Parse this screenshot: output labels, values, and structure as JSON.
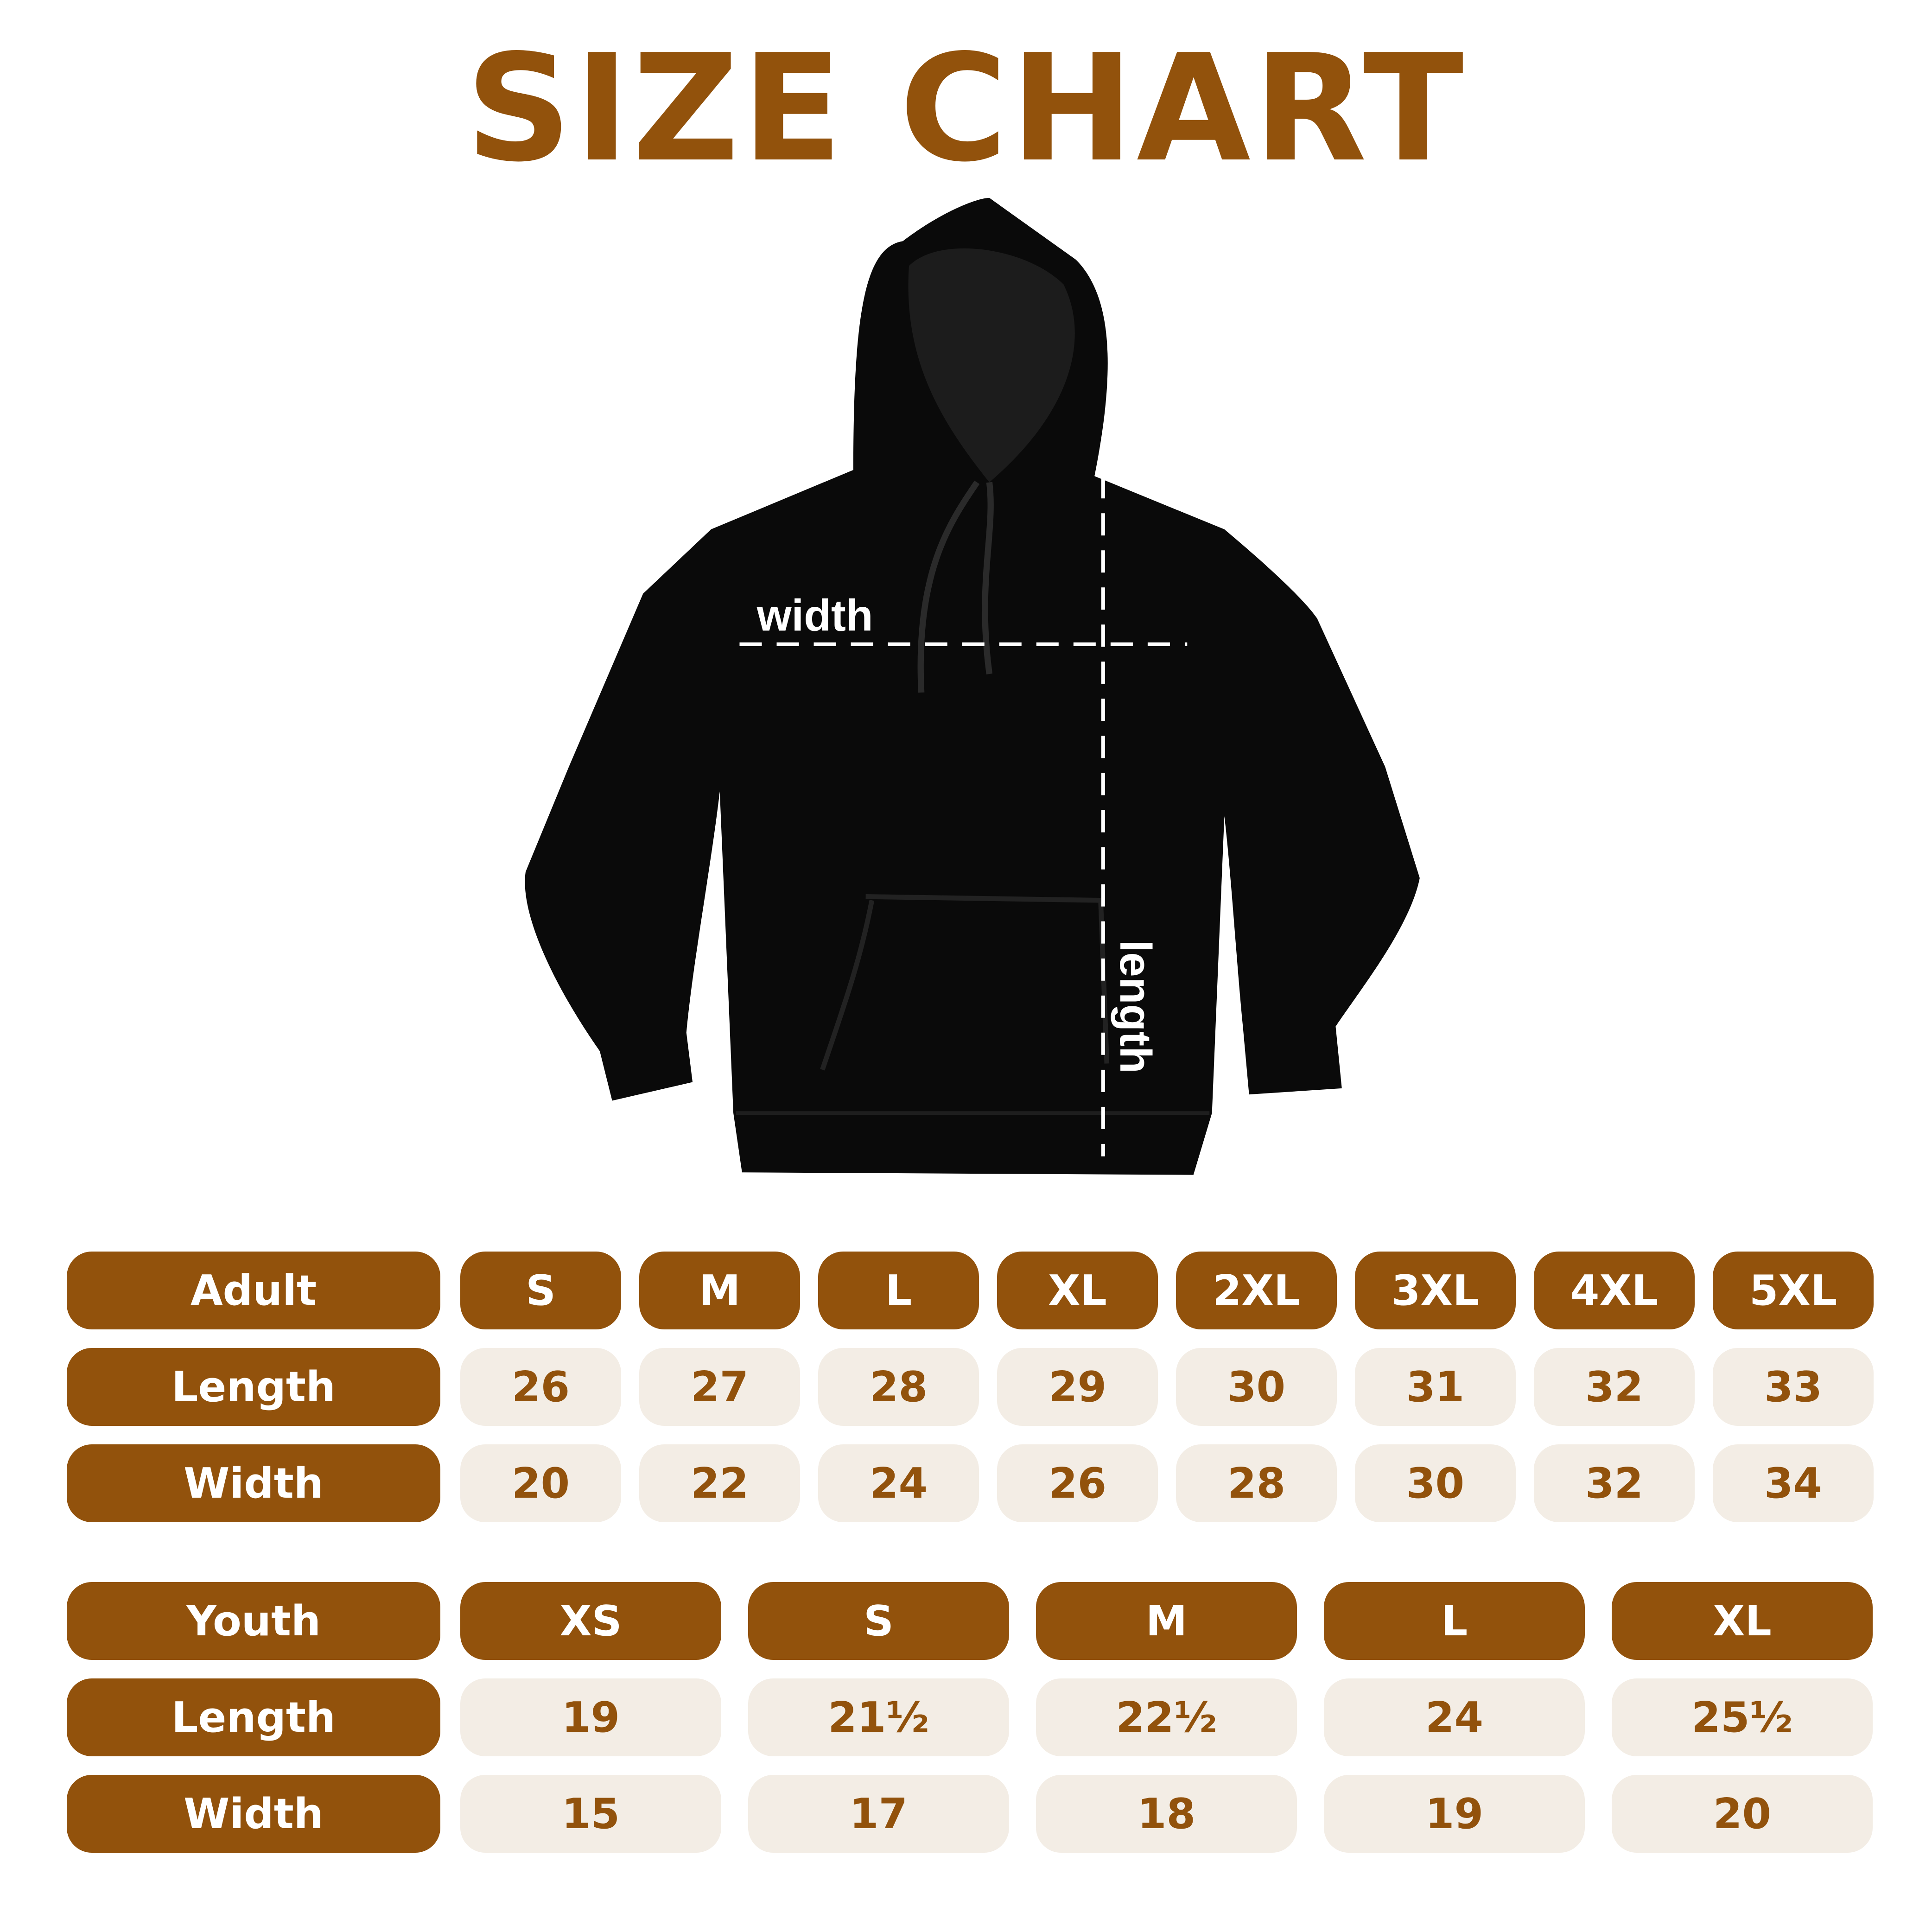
{
  "title": "SIZE CHART",
  "diagram": {
    "width_label": "width",
    "length_label": "length",
    "garment_color": "#0a0a0a"
  },
  "colors": {
    "accent": "#92520c",
    "cell_bg": "#f3ede5"
  },
  "adult": {
    "header": "Adult",
    "sizes": [
      "S",
      "M",
      "L",
      "XL",
      "2XL",
      "3XL",
      "4XL",
      "5XL"
    ],
    "rows": [
      {
        "label": "Length",
        "values": [
          "26",
          "27",
          "28",
          "29",
          "30",
          "31",
          "32",
          "33"
        ]
      },
      {
        "label": "Width",
        "values": [
          "20",
          "22",
          "24",
          "26",
          "28",
          "30",
          "32",
          "34"
        ]
      }
    ]
  },
  "youth": {
    "header": "Youth",
    "sizes": [
      "XS",
      "S",
      "M",
      "L",
      "XL"
    ],
    "rows": [
      {
        "label": "Length",
        "values": [
          "19",
          "21½",
          "22½",
          "24",
          "25½"
        ]
      },
      {
        "label": "Width",
        "values": [
          "15",
          "17",
          "18",
          "19",
          "20"
        ]
      }
    ]
  }
}
